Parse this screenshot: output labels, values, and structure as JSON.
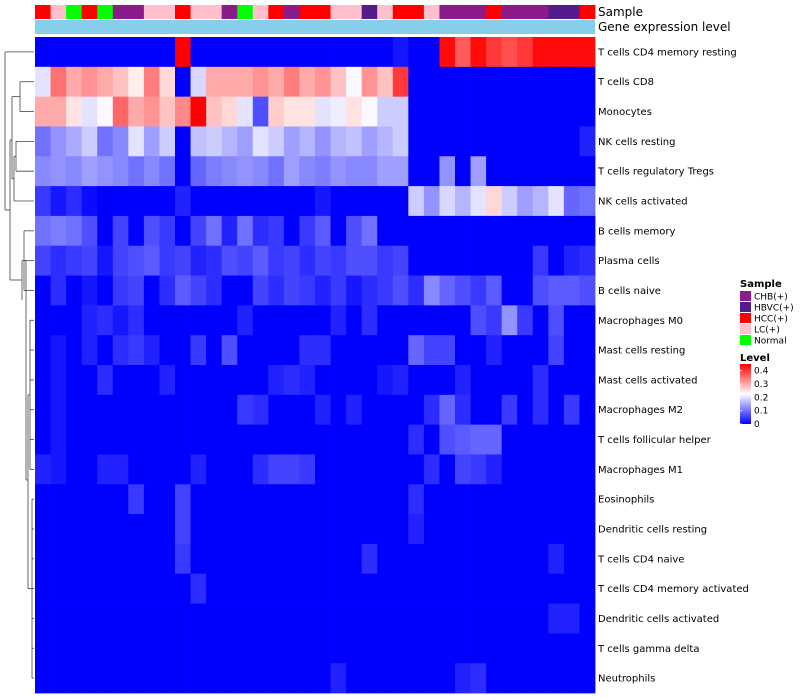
{
  "chart_data": {
    "type": "heatmap",
    "title": "",
    "column_annotation_labels": [
      "Sample",
      "Gene expression level"
    ],
    "rows": [
      "T cells CD4 memory resting",
      "T cells CD8",
      "Monocytes",
      "NK cells resting",
      "T cells regulatory  Tregs",
      "NK cells activated",
      "B cells memory",
      "Plasma cells",
      "B cells naive",
      "Macrophages M0",
      "Mast cells resting",
      "Mast cells activated",
      "Macrophages M2",
      "T cells follicular helper",
      "Macrophages M1",
      "Eosinophils",
      "Dendritic cells resting",
      "T cells CD4 naive",
      "T cells CD4 memory activated",
      "Dendritic cells activated",
      "T cells gamma delta",
      "Neutrophils"
    ],
    "sample_colors": {
      "CHB(+)": "#8B1A8B",
      "HBVC(+)": "#551A8B",
      "HCC(+)": "#FF0000",
      "LC(+)": "#FFC0CB",
      "Normal": "#00FF00"
    },
    "sample_annotation": [
      "HCC(+)",
      "LC(+)",
      "Normal",
      "HCC(+)",
      "Normal",
      "CHB(+)",
      "CHB(+)",
      "LC(+)",
      "LC(+)",
      "HCC(+)",
      "LC(+)",
      "LC(+)",
      "CHB(+)",
      "Normal",
      "LC(+)",
      "HCC(+)",
      "CHB(+)",
      "HCC(+)",
      "HCC(+)",
      "LC(+)",
      "LC(+)",
      "HBVC(+)",
      "LC(+)",
      "HCC(+)",
      "HCC(+)",
      "LC(+)",
      "CHB(+)",
      "CHB(+)",
      "CHB(+)",
      "HCC(+)",
      "CHB(+)",
      "CHB(+)",
      "CHB(+)",
      "HBVC(+)",
      "HBVC(+)",
      "HCC(+)"
    ],
    "gene_expression_color": "#87CEEB",
    "values": [
      [
        0.0,
        0.0,
        0.0,
        0.0,
        0.0,
        0.0,
        0.0,
        0.0,
        0.0,
        0.45,
        0.0,
        0.0,
        0.0,
        0.0,
        0.0,
        0.0,
        0.0,
        0.0,
        0.0,
        0.0,
        0.0,
        0.0,
        0.0,
        0.02,
        0.0,
        0.0,
        0.44,
        0.37,
        0.44,
        0.4,
        0.38,
        0.4,
        0.44,
        0.44,
        0.44,
        0.44
      ],
      [
        0.2,
        0.35,
        0.3,
        0.32,
        0.3,
        0.28,
        0.24,
        0.34,
        0.26,
        0.0,
        0.19,
        0.3,
        0.3,
        0.3,
        0.32,
        0.3,
        0.34,
        0.3,
        0.32,
        0.28,
        0.22,
        0.32,
        0.28,
        0.4,
        0.0,
        0.0,
        0.0,
        0.0,
        0.0,
        0.0,
        0.0,
        0.0,
        0.0,
        0.0,
        0.0,
        0.0
      ],
      [
        0.3,
        0.3,
        0.25,
        0.2,
        0.22,
        0.36,
        0.3,
        0.32,
        0.28,
        0.33,
        0.45,
        0.28,
        0.26,
        0.2,
        0.07,
        0.27,
        0.25,
        0.25,
        0.2,
        0.21,
        0.25,
        0.22,
        0.18,
        0.18,
        0.0,
        0.0,
        0.0,
        0.0,
        0.0,
        0.0,
        0.0,
        0.0,
        0.0,
        0.0,
        0.0,
        0.0
      ],
      [
        0.1,
        0.13,
        0.15,
        0.18,
        0.1,
        0.12,
        0.2,
        0.14,
        0.18,
        0.0,
        0.17,
        0.18,
        0.16,
        0.14,
        0.2,
        0.18,
        0.14,
        0.16,
        0.13,
        0.16,
        0.17,
        0.14,
        0.16,
        0.18,
        0.0,
        0.0,
        0.0,
        0.0,
        0.0,
        0.0,
        0.0,
        0.0,
        0.0,
        0.0,
        0.0,
        0.03
      ],
      [
        0.12,
        0.13,
        0.12,
        0.14,
        0.13,
        0.12,
        0.1,
        0.12,
        0.1,
        0.0,
        0.09,
        0.11,
        0.12,
        0.13,
        0.12,
        0.1,
        0.14,
        0.12,
        0.11,
        0.13,
        0.12,
        0.12,
        0.14,
        0.14,
        0.0,
        0.0,
        0.13,
        0.0,
        0.14,
        0.0,
        0.0,
        0.0,
        0.0,
        0.0,
        0.0,
        0.0
      ],
      [
        0.05,
        0.02,
        0.04,
        0.01,
        0.0,
        0.0,
        0.0,
        0.0,
        0.0,
        0.03,
        0.0,
        0.0,
        0.0,
        0.0,
        0.0,
        0.0,
        0.0,
        0.0,
        0.02,
        0.0,
        0.0,
        0.0,
        0.0,
        0.0,
        0.18,
        0.13,
        0.19,
        0.16,
        0.2,
        0.26,
        0.18,
        0.14,
        0.16,
        0.2,
        0.09,
        0.1
      ],
      [
        0.1,
        0.11,
        0.1,
        0.07,
        0.0,
        0.06,
        0.0,
        0.07,
        0.05,
        0.0,
        0.06,
        0.1,
        0.03,
        0.1,
        0.04,
        0.05,
        0.0,
        0.05,
        0.08,
        0.0,
        0.07,
        0.1,
        0.0,
        0.0,
        0.0,
        0.0,
        0.0,
        0.0,
        0.0,
        0.0,
        0.0,
        0.0,
        0.0,
        0.0,
        0.0,
        0.0
      ],
      [
        0.06,
        0.04,
        0.05,
        0.06,
        0.02,
        0.06,
        0.07,
        0.08,
        0.05,
        0.06,
        0.03,
        0.04,
        0.07,
        0.06,
        0.08,
        0.05,
        0.06,
        0.04,
        0.06,
        0.05,
        0.07,
        0.07,
        0.05,
        0.06,
        0.0,
        0.0,
        0.0,
        0.0,
        0.0,
        0.0,
        0.0,
        0.0,
        0.05,
        0.0,
        0.03,
        0.04
      ],
      [
        0.0,
        0.04,
        0.0,
        0.02,
        0.0,
        0.05,
        0.06,
        0.0,
        0.04,
        0.08,
        0.06,
        0.04,
        0.0,
        0.0,
        0.06,
        0.04,
        0.06,
        0.05,
        0.03,
        0.05,
        0.02,
        0.04,
        0.05,
        0.07,
        0.04,
        0.12,
        0.09,
        0.07,
        0.05,
        0.08,
        0.0,
        0.0,
        0.07,
        0.08,
        0.08,
        0.07
      ],
      [
        0.0,
        0.0,
        0.0,
        0.03,
        0.04,
        0.02,
        0.04,
        0.0,
        0.0,
        0.0,
        0.0,
        0.0,
        0.0,
        0.03,
        0.0,
        0.0,
        0.0,
        0.0,
        0.0,
        0.03,
        0.0,
        0.04,
        0.0,
        0.0,
        0.0,
        0.0,
        0.0,
        0.0,
        0.07,
        0.05,
        0.13,
        0.05,
        0.0,
        0.07,
        0.0,
        0.0
      ],
      [
        0.0,
        0.02,
        0.0,
        0.03,
        0.0,
        0.04,
        0.05,
        0.03,
        0.0,
        0.0,
        0.05,
        0.0,
        0.07,
        0.0,
        0.0,
        0.0,
        0.0,
        0.04,
        0.04,
        0.0,
        0.0,
        0.0,
        0.0,
        0.0,
        0.09,
        0.06,
        0.06,
        0.0,
        0.0,
        0.03,
        0.0,
        0.0,
        0.0,
        0.06,
        0.0,
        0.0
      ],
      [
        0.0,
        0.02,
        0.0,
        0.0,
        0.04,
        0.0,
        0.0,
        0.0,
        0.03,
        0.0,
        0.0,
        0.0,
        0.0,
        0.0,
        0.0,
        0.03,
        0.04,
        0.03,
        0.0,
        0.0,
        0.0,
        0.0,
        0.02,
        0.03,
        0.0,
        0.0,
        0.0,
        0.03,
        0.0,
        0.0,
        0.0,
        0.0,
        0.04,
        0.0,
        0.0,
        0.0
      ],
      [
        0.0,
        0.02,
        0.0,
        0.0,
        0.0,
        0.0,
        0.0,
        0.0,
        0.0,
        0.0,
        0.0,
        0.0,
        0.0,
        0.05,
        0.04,
        0.0,
        0.0,
        0.0,
        0.03,
        0.0,
        0.03,
        0.0,
        0.0,
        0.0,
        0.0,
        0.04,
        0.09,
        0.04,
        0.0,
        0.0,
        0.05,
        0.0,
        0.04,
        0.0,
        0.05,
        0.0
      ],
      [
        0.0,
        0.02,
        0.0,
        0.0,
        0.0,
        0.0,
        0.0,
        0.0,
        0.0,
        0.0,
        0.0,
        0.0,
        0.0,
        0.0,
        0.0,
        0.0,
        0.0,
        0.0,
        0.0,
        0.0,
        0.0,
        0.0,
        0.0,
        0.0,
        0.04,
        0.0,
        0.07,
        0.08,
        0.09,
        0.09,
        0.0,
        0.0,
        0.0,
        0.0,
        0.0,
        0.0
      ],
      [
        0.03,
        0.02,
        0.0,
        0.0,
        0.03,
        0.03,
        0.0,
        0.0,
        0.0,
        0.0,
        0.03,
        0.0,
        0.0,
        0.0,
        0.04,
        0.06,
        0.06,
        0.05,
        0.0,
        0.0,
        0.0,
        0.0,
        0.0,
        0.0,
        0.0,
        0.04,
        0.0,
        0.06,
        0.05,
        0.03,
        0.0,
        0.0,
        0.0,
        0.0,
        0.0,
        0.0
      ],
      [
        0.0,
        0.0,
        0.0,
        0.0,
        0.0,
        0.0,
        0.05,
        0.0,
        0.0,
        0.06,
        0.0,
        0.0,
        0.0,
        0.0,
        0.0,
        0.0,
        0.0,
        0.0,
        0.0,
        0.0,
        0.0,
        0.0,
        0.0,
        0.0,
        0.04,
        0.0,
        0.0,
        0.0,
        0.0,
        0.0,
        0.0,
        0.0,
        0.0,
        0.0,
        0.0,
        0.0
      ],
      [
        0.0,
        0.0,
        0.0,
        0.0,
        0.0,
        0.0,
        0.0,
        0.0,
        0.0,
        0.06,
        0.0,
        0.0,
        0.0,
        0.0,
        0.0,
        0.0,
        0.0,
        0.0,
        0.0,
        0.0,
        0.0,
        0.0,
        0.0,
        0.0,
        0.03,
        0.0,
        0.0,
        0.0,
        0.0,
        0.0,
        0.0,
        0.0,
        0.0,
        0.0,
        0.0,
        0.0
      ],
      [
        0.0,
        0.0,
        0.0,
        0.0,
        0.0,
        0.0,
        0.0,
        0.0,
        0.0,
        0.05,
        0.0,
        0.0,
        0.0,
        0.0,
        0.0,
        0.0,
        0.0,
        0.0,
        0.0,
        0.0,
        0.0,
        0.04,
        0.0,
        0.0,
        0.0,
        0.0,
        0.0,
        0.0,
        0.0,
        0.0,
        0.0,
        0.0,
        0.0,
        0.03,
        0.0,
        0.0
      ],
      [
        0.0,
        0.0,
        0.0,
        0.0,
        0.0,
        0.0,
        0.0,
        0.0,
        0.0,
        0.0,
        0.04,
        0.0,
        0.0,
        0.0,
        0.0,
        0.0,
        0.0,
        0.0,
        0.0,
        0.0,
        0.0,
        0.0,
        0.0,
        0.0,
        0.0,
        0.0,
        0.0,
        0.0,
        0.0,
        0.0,
        0.0,
        0.0,
        0.0,
        0.0,
        0.0,
        0.0
      ],
      [
        0.0,
        0.0,
        0.0,
        0.0,
        0.0,
        0.0,
        0.0,
        0.0,
        0.0,
        0.0,
        0.0,
        0.0,
        0.0,
        0.0,
        0.0,
        0.0,
        0.0,
        0.0,
        0.0,
        0.0,
        0.0,
        0.0,
        0.0,
        0.0,
        0.0,
        0.0,
        0.0,
        0.0,
        0.0,
        0.0,
        0.0,
        0.0,
        0.0,
        0.03,
        0.03,
        0.0
      ],
      [
        0.0,
        0.0,
        0.0,
        0.0,
        0.0,
        0.0,
        0.0,
        0.0,
        0.0,
        0.0,
        0.0,
        0.0,
        0.0,
        0.0,
        0.0,
        0.0,
        0.0,
        0.0,
        0.0,
        0.0,
        0.0,
        0.0,
        0.0,
        0.0,
        0.0,
        0.0,
        0.0,
        0.0,
        0.0,
        0.0,
        0.0,
        0.0,
        0.0,
        0.0,
        0.0,
        0.0
      ],
      [
        0.0,
        0.0,
        0.0,
        0.0,
        0.0,
        0.0,
        0.0,
        0.0,
        0.0,
        0.0,
        0.0,
        0.0,
        0.0,
        0.0,
        0.0,
        0.0,
        0.0,
        0.0,
        0.0,
        0.03,
        0.0,
        0.0,
        0.0,
        0.0,
        0.0,
        0.0,
        0.0,
        0.03,
        0.04,
        0.0,
        0.0,
        0.0,
        0.0,
        0.0,
        0.0,
        0.0
      ]
    ],
    "legend_sample": {
      "title": "Sample",
      "entries": [
        "CHB(+)",
        "HBVC(+)",
        "HCC(+)",
        "LC(+)",
        "Normal"
      ]
    },
    "legend_level": {
      "title": "Level",
      "ticks": [
        "0.4",
        "0.3",
        "0.2",
        "0.1",
        "0"
      ],
      "tick_values": [
        0.4,
        0.3,
        0.2,
        0.1,
        0.0
      ],
      "range": [
        0,
        0.45
      ],
      "colors": {
        "low": "#0000FF",
        "mid": "#FFFFFF",
        "high": "#FF0000"
      }
    }
  }
}
